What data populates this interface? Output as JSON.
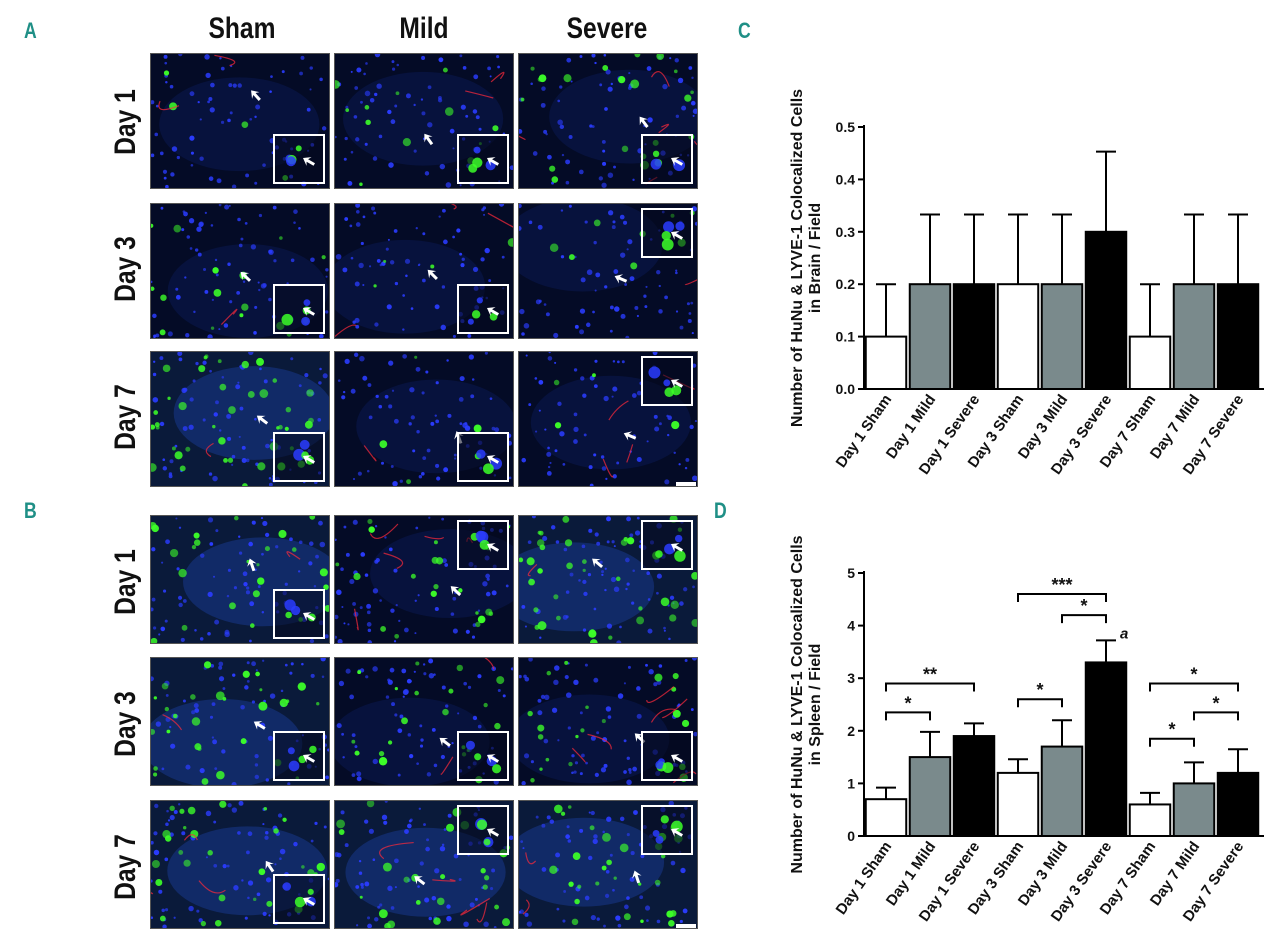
{
  "panels": {
    "A": "A",
    "B": "B",
    "C": "C",
    "D": "D"
  },
  "micrographs": {
    "columns": [
      "Sham",
      "Mild",
      "Severe"
    ],
    "rows": [
      "Day 1",
      "Day 3",
      "Day 7"
    ],
    "colors": {
      "nuclei": "#2a3cff",
      "hunu": "#3cff28",
      "lyve1": "#ff2a3a",
      "arrow": "#ffffff"
    }
  },
  "charts": {
    "categories": [
      "Day 1 Sham",
      "Day 1 Mild",
      "Day 1 Severe",
      "Day 3 Sham",
      "Day 3 Mild",
      "Day 3 Severe",
      "Day 7 Sham",
      "Day 7 Mild",
      "Day 7 Severe"
    ],
    "bar_colors": [
      "#ffffff",
      "#7a8a8c",
      "#000000",
      "#ffffff",
      "#7a8a8c",
      "#000000",
      "#ffffff",
      "#7a8a8c",
      "#000000"
    ]
  },
  "chart_data": [
    {
      "type": "bar",
      "panel": "C",
      "categories": [
        "Day 1 Sham",
        "Day 1 Mild",
        "Day 1 Severe",
        "Day 3 Sham",
        "Day 3 Mild",
        "Day 3 Severe",
        "Day 7 Sham",
        "Day 7 Mild",
        "Day 7 Severe"
      ],
      "values": [
        0.1,
        0.2,
        0.2,
        0.2,
        0.2,
        0.3,
        0.1,
        0.2,
        0.2
      ],
      "errors": [
        0.1,
        0.133,
        0.133,
        0.133,
        0.133,
        0.153,
        0.1,
        0.133,
        0.133
      ],
      "ylabel_line1": "Number of HuNu & LYVE-1 Colocalized Cells",
      "ylabel_line2": "in Brain / Field",
      "ylim": [
        0,
        0.5
      ],
      "yticks": [
        "0.0",
        "0.1",
        "0.2",
        "0.3",
        "0.4",
        "0.5"
      ],
      "annotations": []
    },
    {
      "type": "bar",
      "panel": "D",
      "categories": [
        "Day 1 Sham",
        "Day 1 Mild",
        "Day 1 Severe",
        "Day 3 Sham",
        "Day 3 Mild",
        "Day 3 Severe",
        "Day 7 Sham",
        "Day 7 Mild",
        "Day 7 Severe"
      ],
      "values": [
        0.7,
        1.5,
        1.9,
        1.2,
        1.7,
        3.3,
        0.6,
        1.0,
        1.2
      ],
      "errors": [
        0.22,
        0.48,
        0.24,
        0.26,
        0.5,
        0.42,
        0.22,
        0.4,
        0.45
      ],
      "ylabel_line1": "Number of HuNu & LYVE-1 Colocalized Cells",
      "ylabel_line2": "in Spleen / Field",
      "ylim": [
        0,
        5
      ],
      "yticks": [
        "0",
        "1",
        "2",
        "3",
        "4",
        "5"
      ],
      "significance": [
        {
          "from": 0,
          "to": 1,
          "label": "*",
          "y": 2.35
        },
        {
          "from": 0,
          "to": 2,
          "label": "**",
          "y": 2.9
        },
        {
          "from": 3,
          "to": 4,
          "label": "*",
          "y": 2.6
        },
        {
          "from": 4,
          "to": 5,
          "label": "*",
          "y": 4.2
        },
        {
          "from": 3,
          "to": 5,
          "label": "***",
          "y": 4.6
        },
        {
          "from": 6,
          "to": 7,
          "label": "*",
          "y": 1.85
        },
        {
          "from": 7,
          "to": 8,
          "label": "*",
          "y": 2.35
        },
        {
          "from": 6,
          "to": 8,
          "label": "*",
          "y": 2.9
        }
      ],
      "bar_letter": {
        "index": 5,
        "label": "a"
      }
    }
  ]
}
